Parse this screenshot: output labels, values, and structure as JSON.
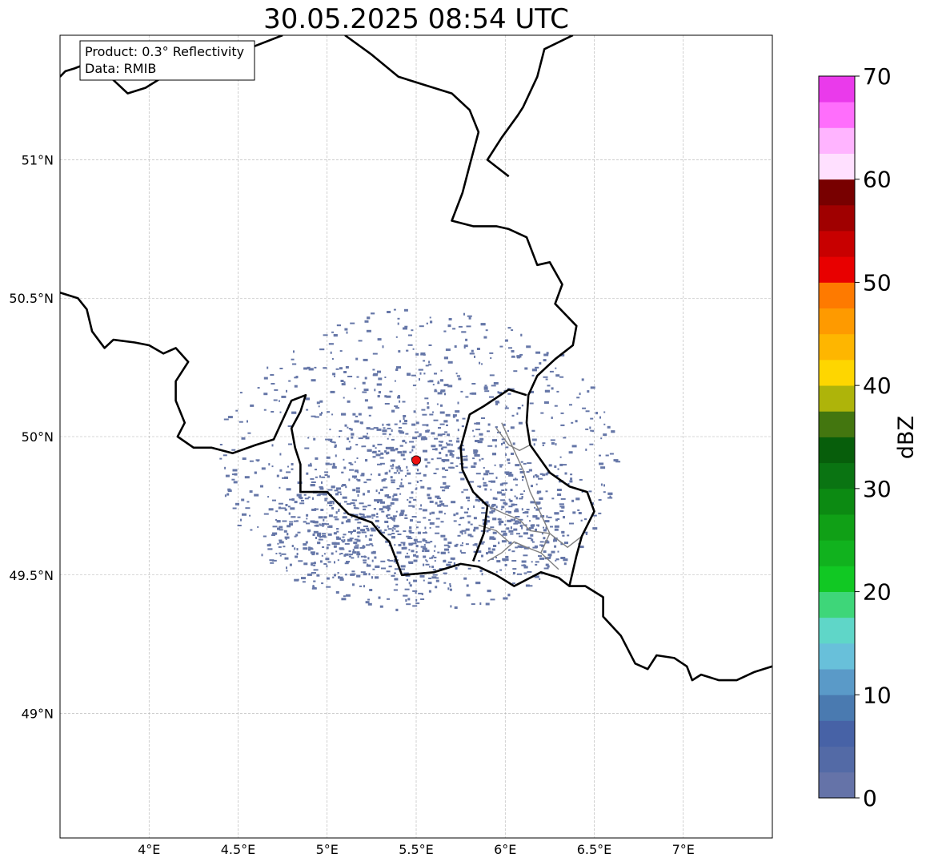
{
  "title": "30.05.2025 08:54 UTC",
  "info_box": {
    "line1": "Product: 0.3° Reflectivity",
    "line2": "Data: RMIB"
  },
  "map": {
    "lon_range": [
      3.5,
      7.5
    ],
    "lat_range": [
      48.55,
      51.45
    ],
    "lon_ticks": [
      {
        "value": 4.0,
        "label": "4°E"
      },
      {
        "value": 4.5,
        "label": "4.5°E"
      },
      {
        "value": 5.0,
        "label": "5°E"
      },
      {
        "value": 5.5,
        "label": "5.5°E"
      },
      {
        "value": 6.0,
        "label": "6°E"
      },
      {
        "value": 6.5,
        "label": "6.5°E"
      },
      {
        "value": 7.0,
        "label": "7°E"
      }
    ],
    "lat_ticks": [
      {
        "value": 49.0,
        "label": "49°N"
      },
      {
        "value": 49.5,
        "label": "49.5°N"
      },
      {
        "value": 50.0,
        "label": "50°N"
      },
      {
        "value": 50.5,
        "label": "50.5°N"
      },
      {
        "value": 51.0,
        "label": "51°N"
      }
    ],
    "gridlines": true,
    "radar_site": {
      "lon": 5.5,
      "lat": 49.915,
      "color": "#ee1111"
    },
    "echo_color": "#6677a8",
    "border_color": "#000000",
    "admin_border_color": "#808080",
    "borders": [
      [
        [
          3.5,
          51.3
        ],
        [
          3.53,
          51.32
        ],
        [
          3.58,
          51.33
        ],
        [
          3.7,
          51.36
        ],
        [
          3.78,
          51.3
        ],
        [
          3.88,
          51.24
        ],
        [
          3.98,
          51.26
        ],
        [
          4.08,
          51.3
        ],
        [
          4.22,
          51.36
        ],
        [
          4.4,
          51.36
        ],
        [
          4.55,
          51.4
        ],
        [
          4.75,
          51.45
        ]
      ],
      [
        [
          5.1,
          51.45
        ],
        [
          5.25,
          51.38
        ],
        [
          5.4,
          51.3
        ],
        [
          5.55,
          51.27
        ],
        [
          5.7,
          51.24
        ],
        [
          5.8,
          51.18
        ],
        [
          5.85,
          51.1
        ],
        [
          5.8,
          50.98
        ],
        [
          5.76,
          50.88
        ],
        [
          5.7,
          50.78
        ],
        [
          5.82,
          50.76
        ],
        [
          5.95,
          50.76
        ],
        [
          6.02,
          50.75
        ],
        [
          6.12,
          50.72
        ],
        [
          6.18,
          50.62
        ],
        [
          6.25,
          50.63
        ],
        [
          6.32,
          50.55
        ],
        [
          6.28,
          50.48
        ],
        [
          6.4,
          50.4
        ],
        [
          6.38,
          50.33
        ],
        [
          6.28,
          50.28
        ],
        [
          6.18,
          50.22
        ],
        [
          6.13,
          50.15
        ],
        [
          6.12,
          50.05
        ],
        [
          6.14,
          49.97
        ],
        [
          6.25,
          49.87
        ],
        [
          6.36,
          49.82
        ],
        [
          6.46,
          49.8
        ],
        [
          6.5,
          49.73
        ],
        [
          6.43,
          49.64
        ],
        [
          6.4,
          49.57
        ],
        [
          6.36,
          49.46
        ]
      ],
      [
        [
          6.38,
          51.45
        ],
        [
          6.22,
          51.4
        ],
        [
          6.18,
          51.3
        ],
        [
          6.1,
          51.19
        ],
        [
          6.07,
          51.16
        ],
        [
          5.98,
          51.08
        ],
        [
          5.9,
          51.0
        ],
        [
          6.02,
          50.94
        ]
      ],
      [
        [
          3.5,
          50.52
        ],
        [
          3.6,
          50.5
        ],
        [
          3.65,
          50.46
        ],
        [
          3.68,
          50.38
        ],
        [
          3.75,
          50.32
        ],
        [
          3.8,
          50.35
        ],
        [
          3.92,
          50.34
        ],
        [
          4.0,
          50.33
        ],
        [
          4.08,
          50.3
        ],
        [
          4.15,
          50.32
        ],
        [
          4.22,
          50.27
        ],
        [
          4.15,
          50.2
        ],
        [
          4.15,
          50.13
        ],
        [
          4.2,
          50.05
        ],
        [
          4.16,
          50.0
        ],
        [
          4.25,
          49.96
        ],
        [
          4.35,
          49.96
        ],
        [
          4.47,
          49.94
        ],
        [
          4.6,
          49.97
        ],
        [
          4.7,
          49.99
        ],
        [
          4.8,
          50.13
        ],
        [
          4.88,
          50.15
        ],
        [
          4.85,
          50.09
        ],
        [
          4.8,
          50.03
        ],
        [
          4.82,
          49.96
        ],
        [
          4.85,
          49.9
        ],
        [
          4.85,
          49.8
        ],
        [
          5.0,
          49.8
        ],
        [
          5.12,
          49.72
        ],
        [
          5.25,
          49.69
        ],
        [
          5.3,
          49.65
        ],
        [
          5.35,
          49.62
        ],
        [
          5.42,
          49.5
        ],
        [
          5.6,
          49.51
        ],
        [
          5.75,
          49.54
        ],
        [
          5.85,
          49.53
        ],
        [
          5.95,
          49.5
        ],
        [
          6.05,
          49.46
        ],
        [
          6.2,
          49.51
        ],
        [
          6.3,
          49.49
        ],
        [
          6.36,
          49.46
        ],
        [
          6.45,
          49.46
        ],
        [
          6.55,
          49.42
        ],
        [
          6.55,
          49.35
        ],
        [
          6.65,
          49.28
        ],
        [
          6.73,
          49.18
        ],
        [
          6.8,
          49.16
        ],
        [
          6.85,
          49.21
        ],
        [
          6.95,
          49.2
        ],
        [
          7.02,
          49.17
        ],
        [
          7.05,
          49.12
        ],
        [
          7.1,
          49.14
        ],
        [
          7.2,
          49.12
        ],
        [
          7.3,
          49.12
        ],
        [
          7.4,
          49.15
        ],
        [
          7.5,
          49.17
        ]
      ],
      [
        [
          5.82,
          49.55
        ],
        [
          5.88,
          49.65
        ],
        [
          5.9,
          49.75
        ],
        [
          5.82,
          49.8
        ],
        [
          5.76,
          49.88
        ],
        [
          5.75,
          49.96
        ],
        [
          5.8,
          50.08
        ],
        [
          5.88,
          50.11
        ],
        [
          6.02,
          50.17
        ],
        [
          6.12,
          50.15
        ]
      ]
    ],
    "admin_borders": [
      [
        [
          5.98,
          50.05
        ],
        [
          6.05,
          49.95
        ],
        [
          6.1,
          49.88
        ],
        [
          6.14,
          49.8
        ],
        [
          6.2,
          49.72
        ],
        [
          6.25,
          49.65
        ],
        [
          6.2,
          49.58
        ]
      ],
      [
        [
          5.9,
          49.75
        ],
        [
          6.0,
          49.72
        ],
        [
          6.08,
          49.7
        ],
        [
          6.14,
          49.66
        ],
        [
          6.25,
          49.65
        ],
        [
          6.35,
          49.6
        ],
        [
          6.43,
          49.64
        ]
      ],
      [
        [
          5.9,
          49.55
        ],
        [
          5.98,
          49.58
        ],
        [
          6.05,
          49.62
        ],
        [
          6.12,
          49.6
        ],
        [
          6.2,
          49.58
        ],
        [
          6.3,
          49.52
        ]
      ],
      [
        [
          5.95,
          50.03
        ],
        [
          6.02,
          49.97
        ],
        [
          6.08,
          49.95
        ],
        [
          6.14,
          49.97
        ]
      ],
      [
        [
          5.85,
          49.68
        ],
        [
          5.95,
          49.66
        ],
        [
          6.02,
          49.62
        ]
      ]
    ]
  },
  "colorbar": {
    "label": "dBZ",
    "min": 0,
    "max": 70,
    "ticks": [
      0,
      10,
      20,
      30,
      40,
      50,
      60,
      70
    ],
    "step": 2.5,
    "colors": [
      "#6573a8",
      "#536aa6",
      "#4762a6",
      "#4a7ab0",
      "#5a9ac8",
      "#68c0da",
      "#5fd6c8",
      "#3ed679",
      "#11c823",
      "#11b21e",
      "#10a016",
      "#0c8a12",
      "#0a7412",
      "#075e0b",
      "#43760f",
      "#aeb40a",
      "#fed600",
      "#feb600",
      "#fe9a00",
      "#fe7a00",
      "#e80000",
      "#c80000",
      "#a00000",
      "#780000",
      "#ffe0ff",
      "#ffb4ff",
      "#ff6efc",
      "#ea3aeb"
    ]
  }
}
